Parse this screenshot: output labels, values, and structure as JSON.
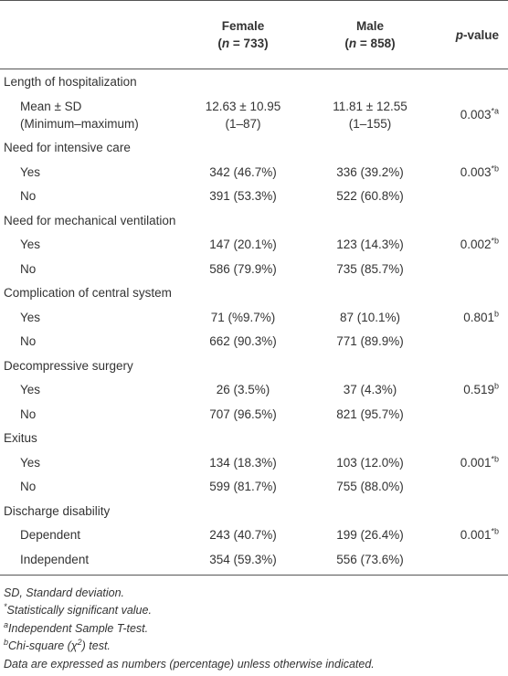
{
  "header": {
    "female": {
      "name": "Female",
      "open": "(",
      "var": "n",
      "rest": " = 733)"
    },
    "male": {
      "name": "Male",
      "open": "(",
      "var": "n",
      "rest": " = 858)"
    },
    "p_value": {
      "var": "p",
      "rest": "-value"
    }
  },
  "sections": [
    {
      "title": "Length of hospitalization",
      "rows": [
        {
          "label": [
            "Mean ± SD",
            "(Minimum–maximum)"
          ],
          "female": [
            "12.63 ± 10.95",
            "(1–87)"
          ],
          "male": [
            "11.81 ± 12.55",
            "(1–155)"
          ],
          "p": "0.003",
          "p_sup": "*a"
        }
      ]
    },
    {
      "title": "Need for intensive care",
      "rows": [
        {
          "label": "Yes",
          "female": "342 (46.7%)",
          "male": "336 (39.2%)",
          "p": "0.003",
          "p_sup": "*b"
        },
        {
          "label": "No",
          "female": "391 (53.3%)",
          "male": "522 (60.8%)"
        }
      ]
    },
    {
      "title": "Need for mechanical ventilation",
      "rows": [
        {
          "label": "Yes",
          "female": "147 (20.1%)",
          "male": "123 (14.3%)",
          "p": "0.002",
          "p_sup": "*b"
        },
        {
          "label": "No",
          "female": "586 (79.9%)",
          "male": "735 (85.7%)"
        }
      ]
    },
    {
      "title": "Complication of central system",
      "rows": [
        {
          "label": "Yes",
          "female": "71 (%9.7%)",
          "male": "87 (10.1%)",
          "p": "0.801",
          "p_sup": "b"
        },
        {
          "label": "No",
          "female": "662 (90.3%)",
          "male": "771 (89.9%)"
        }
      ]
    },
    {
      "title": "Decompressive surgery",
      "rows": [
        {
          "label": "Yes",
          "female": "26 (3.5%)",
          "male": "37 (4.3%)",
          "p": "0.519",
          "p_sup": "b"
        },
        {
          "label": "No",
          "female": "707 (96.5%)",
          "male": "821 (95.7%)"
        }
      ]
    },
    {
      "title": "Exitus",
      "rows": [
        {
          "label": "Yes",
          "female": "134 (18.3%)",
          "male": "103 (12.0%)",
          "p": "0.001",
          "p_sup": "*b"
        },
        {
          "label": "No",
          "female": "599 (81.7%)",
          "male": "755 (88.0%)"
        }
      ]
    },
    {
      "title": "Discharge disability",
      "rows": [
        {
          "label": "Dependent",
          "female": "243 (40.7%)",
          "male": "199 (26.4%)",
          "p": "0.001",
          "p_sup": "*b"
        },
        {
          "label": "Independent",
          "female": "354 (59.3%)",
          "male": "556 (73.6%)"
        }
      ]
    }
  ],
  "footnotes": [
    {
      "text": "SD, Standard deviation."
    },
    {
      "mark": "*",
      "text": "Statistically significant value."
    },
    {
      "mark": "a",
      "text": "Independent Sample T-test."
    },
    {
      "mark": "b",
      "text": "Chi-square (χ",
      "sup": "2",
      "end": ") test."
    },
    {
      "text": "Data are expressed as numbers (percentage) unless otherwise indicated."
    }
  ]
}
